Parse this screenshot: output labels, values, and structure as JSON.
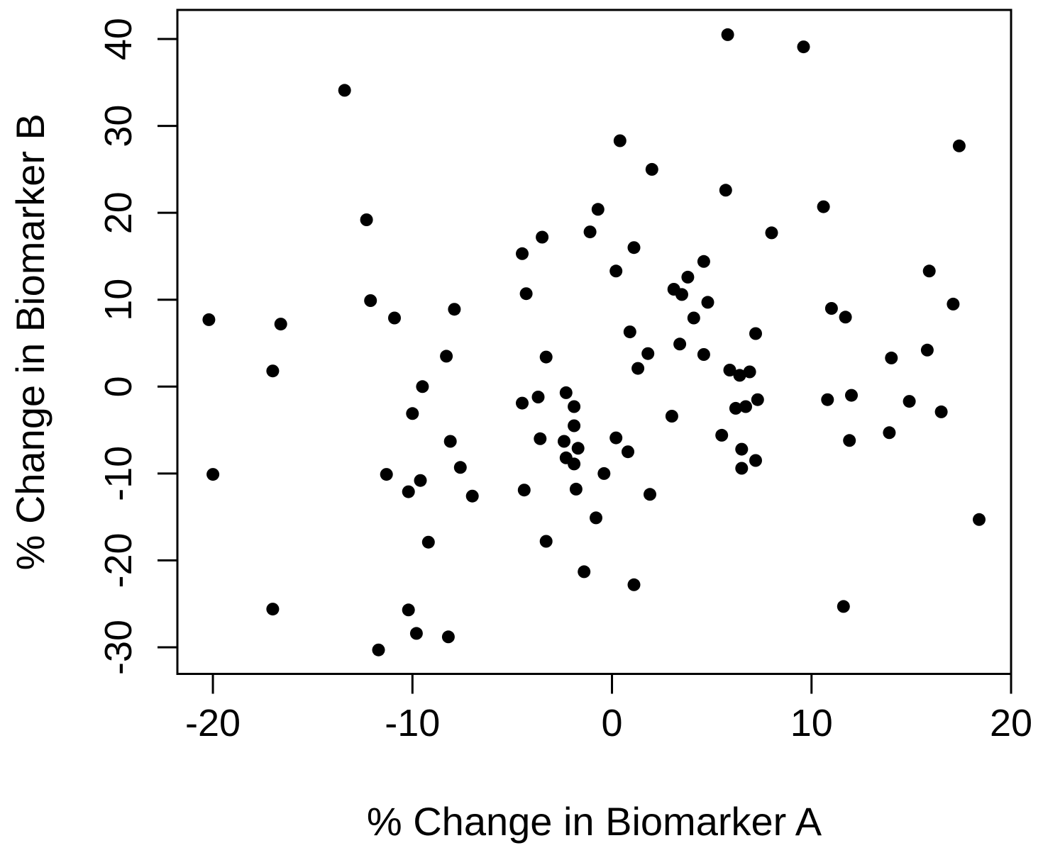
{
  "figure": {
    "background": "#ffffff",
    "point_color": "#000000",
    "axis_color": "#000000",
    "text_color": "#000000"
  },
  "chart_data": {
    "type": "scatter",
    "title": "",
    "xlabel": "% Change in Biomarker A",
    "ylabel": "% Change in Biomarker B",
    "grid": false,
    "legend": null,
    "marker": "filled-circle",
    "x_axis": {
      "ticks": [
        -20,
        -10,
        0,
        10,
        20
      ],
      "range": [
        -21.78,
        20.0
      ]
    },
    "y_axis": {
      "ticks": [
        -30,
        -20,
        -10,
        0,
        10,
        20,
        30,
        40
      ],
      "range": [
        -33.06,
        43.35
      ]
    },
    "points": [
      [
        -13.4,
        34.1
      ],
      [
        -12.3,
        19.2
      ],
      [
        5.8,
        40.5
      ],
      [
        0.4,
        28.3
      ],
      [
        2.0,
        25.0
      ],
      [
        5.7,
        22.6
      ],
      [
        -0.7,
        20.4
      ],
      [
        9.6,
        39.1
      ],
      [
        17.4,
        27.7
      ],
      [
        10.6,
        20.7
      ],
      [
        -20.2,
        7.7
      ],
      [
        -16.6,
        7.2
      ],
      [
        -12.1,
        9.9
      ],
      [
        -10.9,
        7.9
      ],
      [
        -17.0,
        1.8
      ],
      [
        -9.5,
        0.0
      ],
      [
        -10.0,
        -3.1
      ],
      [
        -8.3,
        3.5
      ],
      [
        -3.5,
        17.2
      ],
      [
        -1.1,
        17.8
      ],
      [
        -4.5,
        15.3
      ],
      [
        1.1,
        16.0
      ],
      [
        0.2,
        13.3
      ],
      [
        4.6,
        14.4
      ],
      [
        3.8,
        12.6
      ],
      [
        3.1,
        11.2
      ],
      [
        3.5,
        10.6
      ],
      [
        -4.3,
        10.7
      ],
      [
        -7.9,
        8.9
      ],
      [
        4.8,
        9.7
      ],
      [
        4.1,
        7.9
      ],
      [
        0.9,
        6.3
      ],
      [
        3.4,
        4.9
      ],
      [
        4.6,
        3.7
      ],
      [
        -3.3,
        3.4
      ],
      [
        1.8,
        3.8
      ],
      [
        1.3,
        2.1
      ],
      [
        -2.3,
        -0.7
      ],
      [
        -3.7,
        -1.2
      ],
      [
        -4.5,
        -1.9
      ],
      [
        -1.9,
        -2.3
      ],
      [
        3.0,
        -3.4
      ],
      [
        -1.9,
        -4.5
      ],
      [
        -2.4,
        -6.3
      ],
      [
        -1.7,
        -7.1
      ],
      [
        -2.3,
        -8.2
      ],
      [
        -1.9,
        -8.9
      ],
      [
        -3.6,
        -6.0
      ],
      [
        0.2,
        -5.9
      ],
      [
        0.8,
        -7.5
      ],
      [
        8.0,
        17.7
      ],
      [
        15.9,
        13.3
      ],
      [
        17.1,
        9.5
      ],
      [
        11.0,
        9.0
      ],
      [
        11.7,
        8.0
      ],
      [
        7.2,
        6.1
      ],
      [
        15.8,
        4.2
      ],
      [
        14.0,
        3.3
      ],
      [
        5.9,
        1.9
      ],
      [
        6.4,
        1.3
      ],
      [
        6.9,
        1.7
      ],
      [
        6.2,
        -2.5
      ],
      [
        6.7,
        -2.3
      ],
      [
        7.3,
        -1.5
      ],
      [
        10.8,
        -1.5
      ],
      [
        12.0,
        -1.0
      ],
      [
        14.9,
        -1.7
      ],
      [
        16.5,
        -2.9
      ],
      [
        5.5,
        -5.6
      ],
      [
        6.5,
        -7.2
      ],
      [
        13.9,
        -5.3
      ],
      [
        11.9,
        -6.2
      ],
      [
        -20.0,
        -10.1
      ],
      [
        -11.3,
        -10.1
      ],
      [
        -10.2,
        -12.1
      ],
      [
        -9.6,
        -10.8
      ],
      [
        -9.2,
        -17.9
      ],
      [
        -17.0,
        -25.6
      ],
      [
        -10.2,
        -25.7
      ],
      [
        -9.8,
        -28.4
      ],
      [
        -8.2,
        -28.8
      ],
      [
        -11.7,
        -30.3
      ],
      [
        -7.6,
        -9.3
      ],
      [
        -7.0,
        -12.6
      ],
      [
        -4.4,
        -11.9
      ],
      [
        -1.8,
        -11.8
      ],
      [
        -0.4,
        -10.0
      ],
      [
        1.9,
        -12.4
      ],
      [
        -0.8,
        -15.1
      ],
      [
        -3.3,
        -17.8
      ],
      [
        -1.4,
        -21.3
      ],
      [
        1.1,
        -22.8
      ],
      [
        7.2,
        -8.5
      ],
      [
        6.5,
        -9.4
      ],
      [
        18.4,
        -15.3
      ],
      [
        11.6,
        -25.3
      ],
      [
        -8.1,
        -6.3
      ]
    ]
  }
}
